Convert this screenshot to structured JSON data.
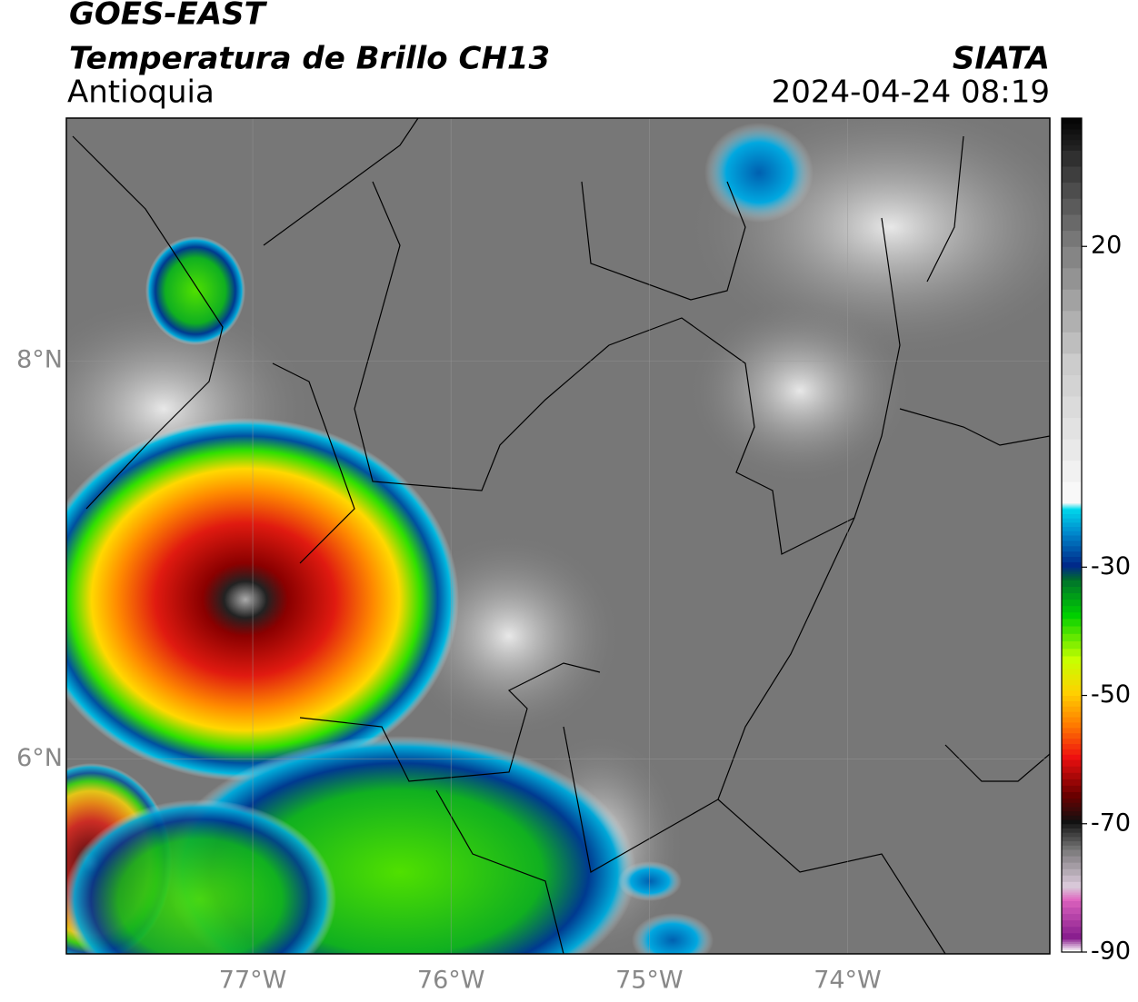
{
  "header": {
    "satellite": "GOES-EAST",
    "product": "Temperatura de Brillo CH13",
    "region": "Antioquia",
    "source": "SIATA",
    "datetime": "2024-04-24 08:19"
  },
  "map": {
    "xlim": [
      -77.94,
      -72.98
    ],
    "ylim": [
      5.02,
      9.22
    ],
    "xticks": [
      {
        "value": -77,
        "label": "77°W"
      },
      {
        "value": -76,
        "label": "76°W"
      },
      {
        "value": -75,
        "label": "75°W"
      },
      {
        "value": -74,
        "label": "74°W"
      }
    ],
    "yticks": [
      {
        "value": 8,
        "label": "8°N"
      },
      {
        "value": 6,
        "label": "6°N"
      }
    ],
    "grid": true
  },
  "colorbar": {
    "lim": [
      -90,
      40
    ],
    "ticks": [
      20,
      -30,
      -50,
      -70,
      -90
    ],
    "colors": [
      {
        "value": -90,
        "color": "#ffffff"
      },
      {
        "value": -88,
        "color": "#8a1f8f"
      },
      {
        "value": -82,
        "color": "#e066c0"
      },
      {
        "value": -80,
        "color": "#d8c8d8"
      },
      {
        "value": -74,
        "color": "#707070"
      },
      {
        "value": -70,
        "color": "#111111"
      },
      {
        "value": -66,
        "color": "#6a0000"
      },
      {
        "value": -60,
        "color": "#ee1010"
      },
      {
        "value": -55,
        "color": "#ff7a00"
      },
      {
        "value": -50,
        "color": "#ffd000"
      },
      {
        "value": -45,
        "color": "#c8ff00"
      },
      {
        "value": -38,
        "color": "#00d000"
      },
      {
        "value": -32,
        "color": "#006a30"
      },
      {
        "value": -30,
        "color": "#002a8a"
      },
      {
        "value": -25,
        "color": "#0088cc"
      },
      {
        "value": -21,
        "color": "#00ddee"
      },
      {
        "value": -20,
        "color": "#f8f8f8"
      },
      {
        "value": 0,
        "color": "#cccccc"
      },
      {
        "value": 20,
        "color": "#777777"
      },
      {
        "value": 35,
        "color": "#222222"
      },
      {
        "value": 40,
        "color": "#000000"
      }
    ]
  }
}
